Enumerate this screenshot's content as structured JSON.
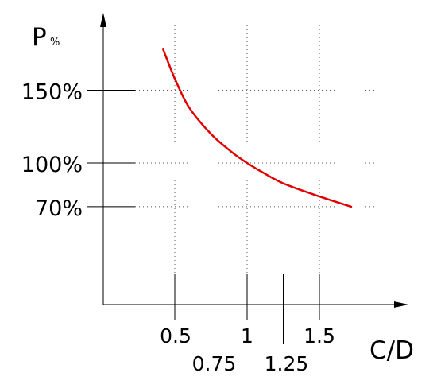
{
  "chart_data": {
    "type": "line",
    "xlabel": "C/D",
    "ylabel_main": "P",
    "ylabel_sub": "%",
    "x_ticks_upper": [
      "0.5",
      "1",
      "1.5"
    ],
    "x_ticks_lower": [
      "0.75",
      "1.25"
    ],
    "x_tick_values_upper": [
      0.5,
      1,
      1.5
    ],
    "x_tick_values_lower": [
      0.75,
      1.25
    ],
    "y_ticks": [
      "150%",
      "100%",
      "70%"
    ],
    "y_tick_values": [
      150,
      100,
      70
    ],
    "grid": true,
    "series": [
      {
        "color": "#e00000",
        "x": [
          0.42,
          0.5,
          0.6,
          0.75,
          0.9,
          1.0,
          1.1,
          1.25,
          1.5,
          1.72
        ],
        "y": [
          178,
          158,
          138,
          120,
          107,
          100,
          94,
          86,
          77,
          70
        ]
      }
    ]
  }
}
